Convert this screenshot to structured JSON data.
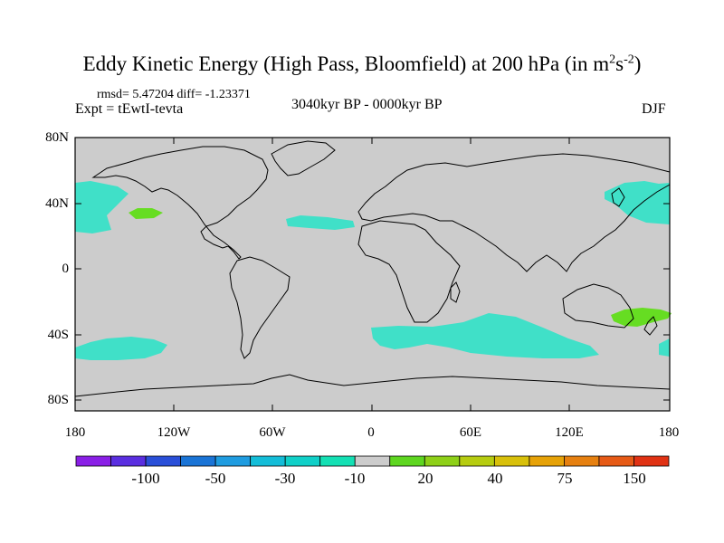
{
  "title": {
    "main": "Eddy Kinetic Energy (High Pass, Bloomfield) at 200 hPa (in m",
    "sup1": "2",
    "mid": "s",
    "sup2": "-2",
    "end": ")"
  },
  "stats": "rmsd= 5.47204 diff= -1.23371",
  "experiment": "Expt = tEwtI-tevta",
  "period": "3040kyr BP - 0000kyr BP",
  "season": "DJF",
  "lat_labels": [
    "80N",
    "40N",
    "0",
    "40S",
    "80S"
  ],
  "lon_labels": [
    "180",
    "120W",
    "60W",
    "0",
    "60E",
    "120E",
    "180"
  ],
  "colorbar": {
    "colors": [
      "#8a1fe6",
      "#5a2ee0",
      "#2a4fd8",
      "#1a74d6",
      "#1f9ce0",
      "#14bdd8",
      "#10d0c8",
      "#14e0b4",
      "#cccccc",
      "#5ed620",
      "#8ed018",
      "#b6cc10",
      "#d8c00a",
      "#e6a208",
      "#e68010",
      "#e65a16",
      "#e03214"
    ],
    "labels": [
      "-100",
      "-50",
      "-30",
      "-10",
      "20",
      "40",
      "75",
      "150"
    ]
  },
  "map": {
    "land_color": "#cccccc",
    "negative_color": "#40e0c8",
    "positive_color": "#66dd22"
  }
}
